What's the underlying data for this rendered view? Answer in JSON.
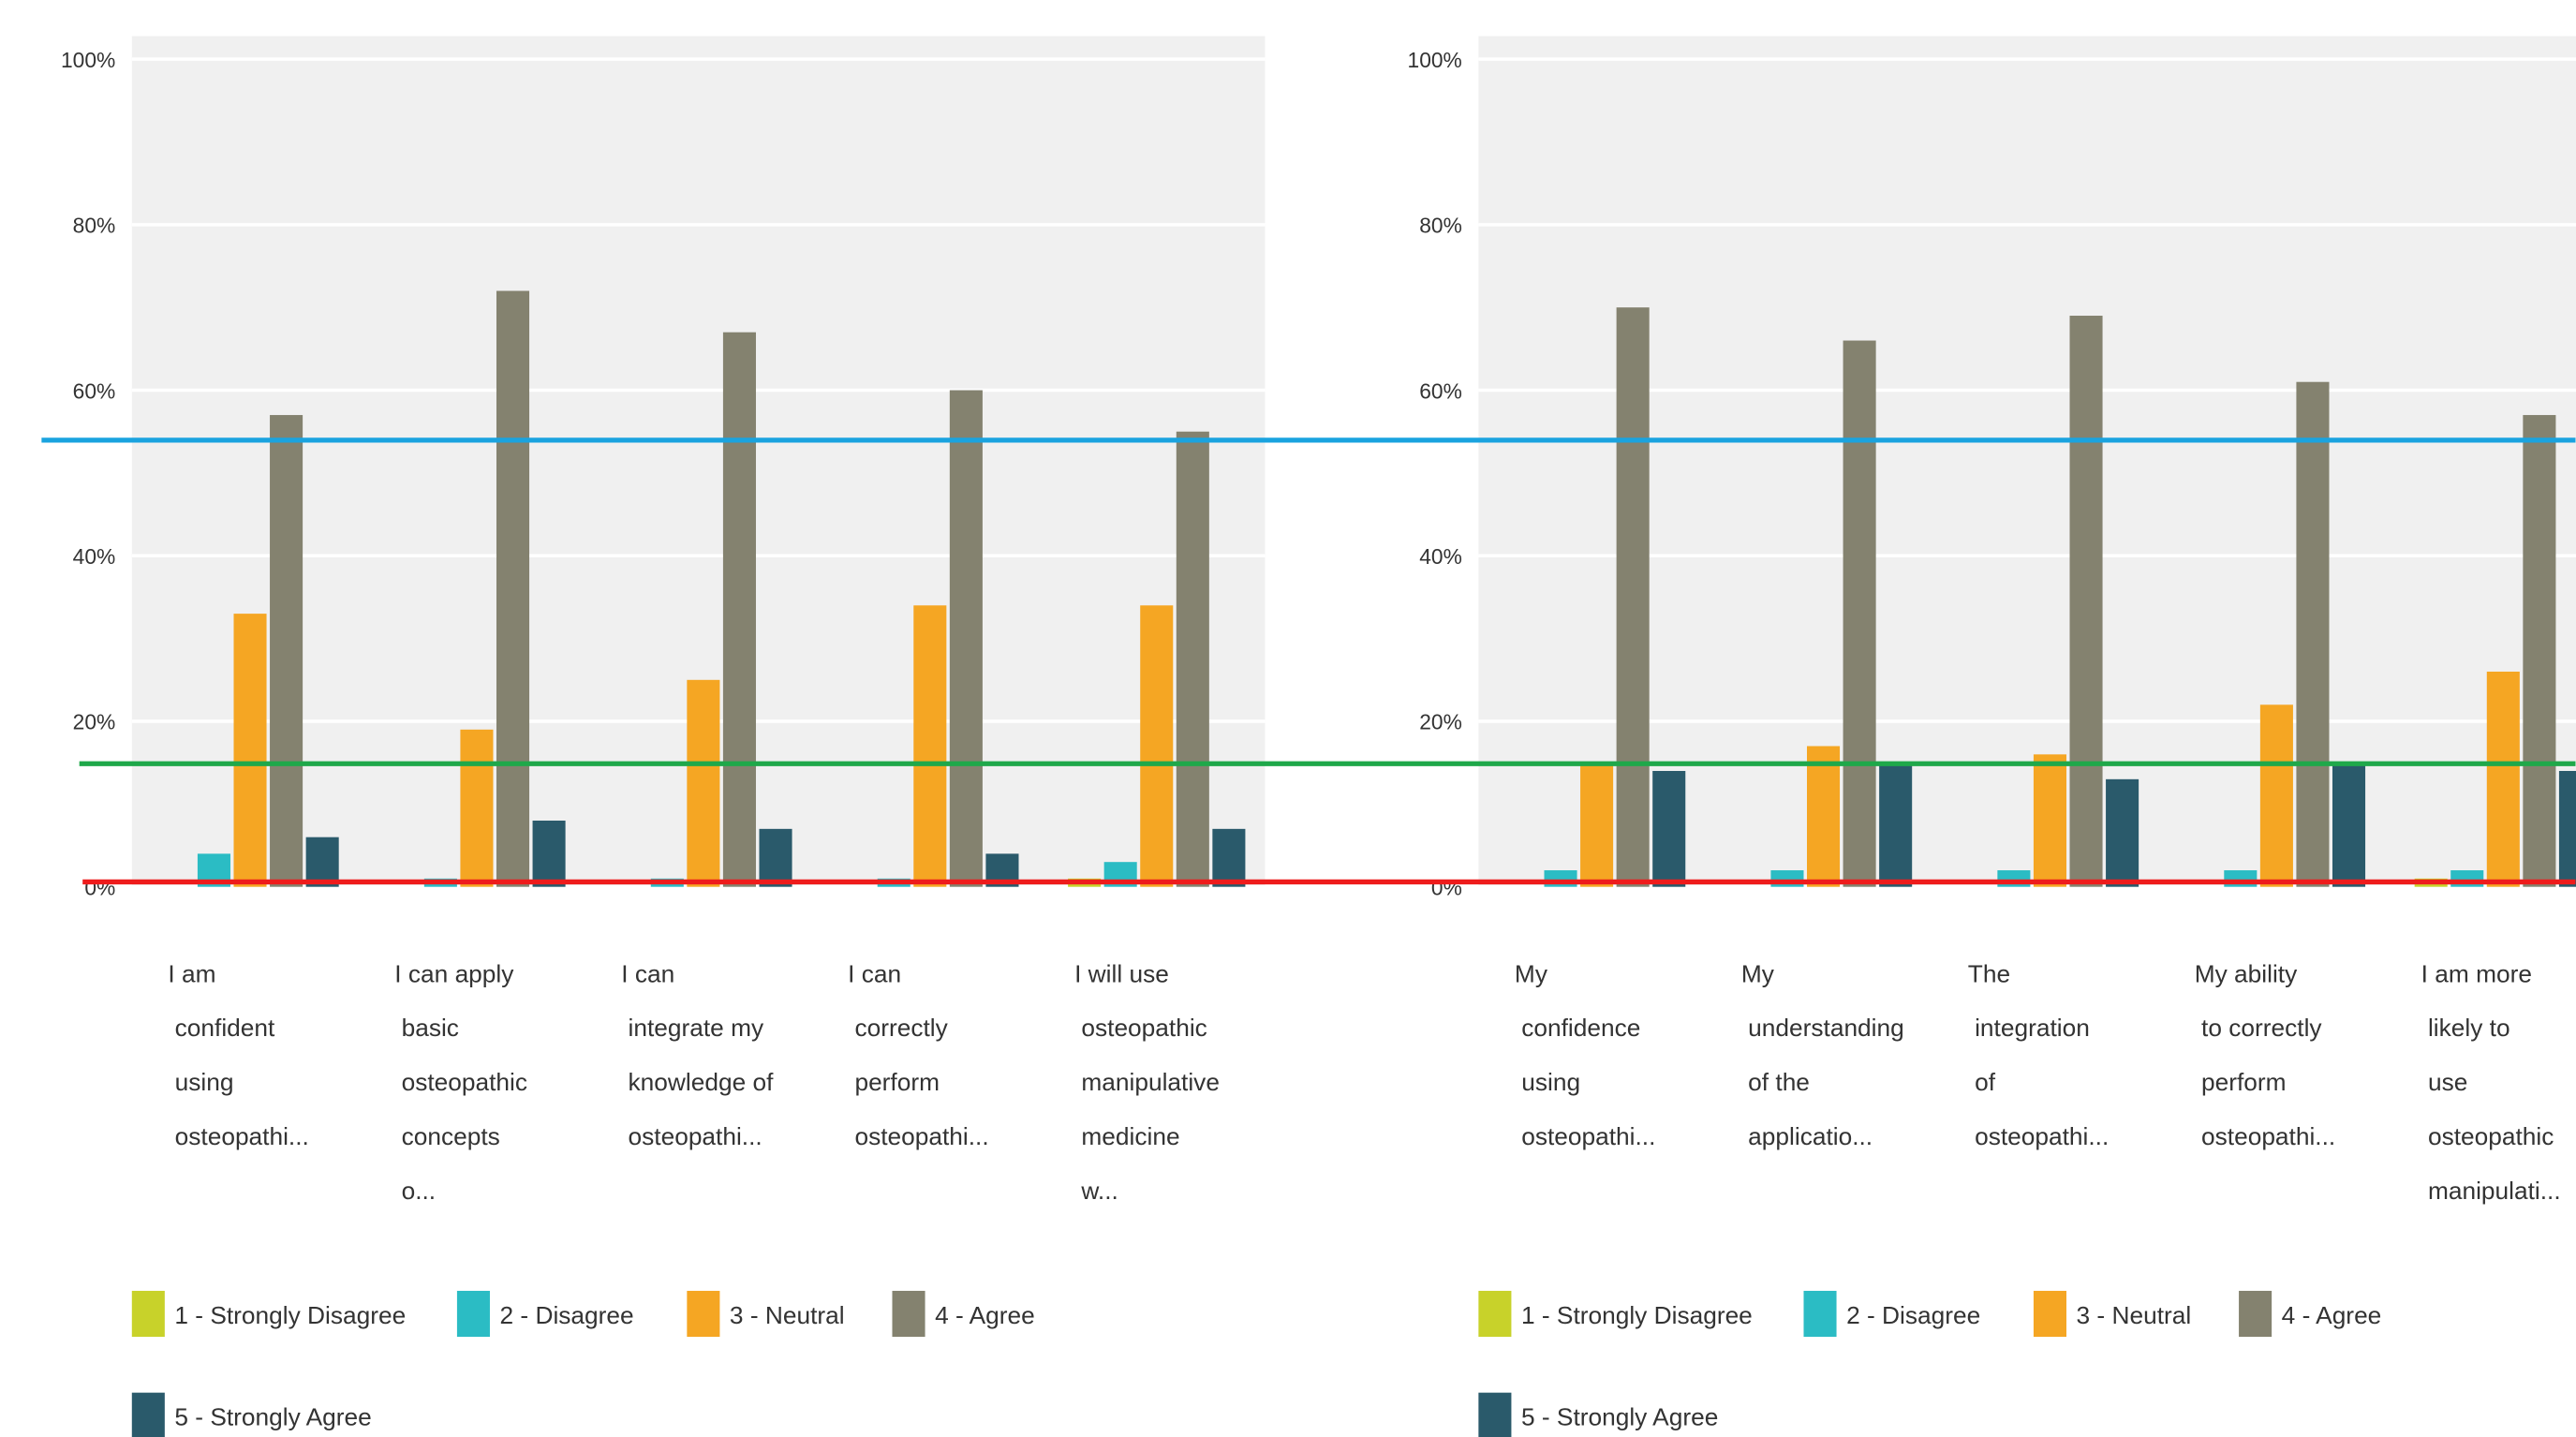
{
  "chart_data": [
    {
      "type": "bar",
      "categories": [
        "I am confident using osteopathi...",
        "I can apply basic osteopathic concepts o...",
        "I can integrate my knowledge of osteopathi...",
        "I can correctly perform osteopathi...",
        "I will use osteopathic manipulative medicine w..."
      ],
      "series": [
        {
          "name": "1 - Strongly Disagree",
          "color": "#c8d22a",
          "values": [
            0,
            0,
            0,
            0,
            1
          ]
        },
        {
          "name": "2 - Disagree",
          "color": "#2bbcc4",
          "values": [
            4,
            1,
            1,
            1,
            3
          ]
        },
        {
          "name": "3 - Neutral",
          "color": "#f5a623",
          "values": [
            33,
            19,
            25,
            34,
            34
          ]
        },
        {
          "name": "4 - Agree",
          "color": "#84826f",
          "values": [
            57,
            72,
            67,
            60,
            55
          ]
        },
        {
          "name": "5 - Strongly Agree",
          "color": "#2a5a6b",
          "values": [
            6,
            8,
            7,
            4,
            7
          ]
        }
      ],
      "ylim": [
        0,
        100
      ],
      "yticks": [
        {
          "value": 0,
          "label": "0%"
        },
        {
          "value": 20,
          "label": "20%"
        },
        {
          "value": 40,
          "label": "40%"
        },
        {
          "value": 60,
          "label": "60%"
        },
        {
          "value": 80,
          "label": "80%"
        },
        {
          "value": 100,
          "label": "100%"
        }
      ],
      "grid": true
    },
    {
      "type": "bar",
      "categories": [
        "My confidence using osteopathi...",
        "My understanding of the applicatio...",
        "The integration of osteopathi...",
        "My ability to correctly perform osteopathi...",
        "I am more likely to use osteopathic manipulati..."
      ],
      "series": [
        {
          "name": "1 - Strongly Disagree",
          "color": "#c8d22a",
          "values": [
            0,
            0,
            0,
            0,
            1
          ]
        },
        {
          "name": "2 - Disagree",
          "color": "#2bbcc4",
          "values": [
            2,
            2,
            2,
            2,
            2
          ]
        },
        {
          "name": "3 - Neutral",
          "color": "#f5a623",
          "values": [
            15,
            17,
            16,
            22,
            26
          ]
        },
        {
          "name": "4 - Agree",
          "color": "#84826f",
          "values": [
            70,
            66,
            69,
            61,
            57
          ]
        },
        {
          "name": "5 - Strongly Agree",
          "color": "#2a5a6b",
          "values": [
            14,
            15,
            13,
            15,
            14
          ]
        }
      ],
      "ylim": [
        0,
        100
      ],
      "yticks": [
        {
          "value": 0,
          "label": "0%"
        },
        {
          "value": 20,
          "label": "20%"
        },
        {
          "value": 40,
          "label": "40%"
        },
        {
          "value": 60,
          "label": "60%"
        },
        {
          "value": 80,
          "label": "80%"
        },
        {
          "value": 100,
          "label": "100%"
        }
      ],
      "grid": true
    }
  ]
}
